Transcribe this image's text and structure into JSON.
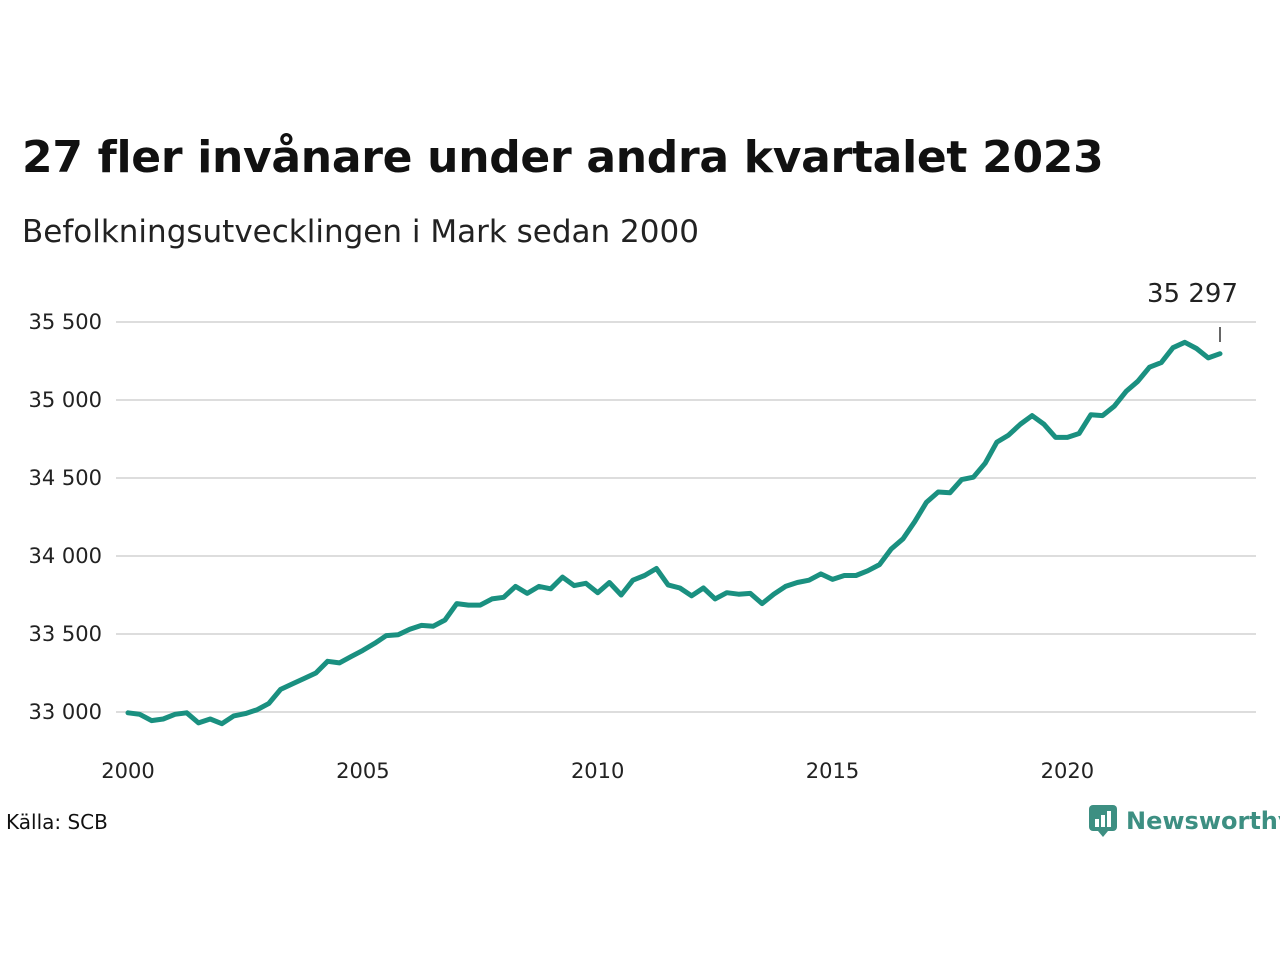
{
  "title": "27 fler invånare under andra kvartalet 2023",
  "subtitle": "Befolkningsutvecklingen i Mark sedan 2000",
  "source": "Källa: SCB",
  "brand": {
    "name": "Newsworthy",
    "color": "#3d8f82",
    "icon": "newsworthy-logo-icon"
  },
  "colors": {
    "line": "#1a9080",
    "grid": "#dddddd"
  },
  "chart_data": {
    "type": "line",
    "title": "27 fler invånare under andra kvartalet 2023",
    "subtitle": "Befolkningsutvecklingen i Mark sedan 2000",
    "xlabel": "",
    "ylabel": "",
    "xlim": [
      2000,
      2024.5
    ],
    "ylim": [
      32850,
      35620
    ],
    "xticks": [
      2000,
      2005,
      2010,
      2015,
      2020
    ],
    "xtick_labels": [
      "2000",
      "2005",
      "2010",
      "2015",
      "2020"
    ],
    "yticks": [
      33000,
      33500,
      34000,
      34500,
      35000,
      35500
    ],
    "ytick_labels": [
      "33 000",
      "33 500",
      "34 000",
      "34 500",
      "35 000",
      "35 500"
    ],
    "grid": "horizontal",
    "legend": "none",
    "end_label": "35 297",
    "series": [
      {
        "x": [
          2000,
          2000.25,
          2000.5,
          2000.75,
          2001,
          2001.25,
          2001.5,
          2001.75,
          2002,
          2002.25,
          2002.5,
          2002.75,
          2003,
          2003.25,
          2003.5,
          2003.75,
          2004,
          2004.25,
          2004.5,
          2004.75,
          2005,
          2005.25,
          2005.5,
          2005.75,
          2006,
          2006.25,
          2006.5,
          2006.75,
          2007,
          2007.25,
          2007.5,
          2007.75,
          2008,
          2008.25,
          2008.5,
          2008.75,
          2009,
          2009.25,
          2009.5,
          2009.75,
          2010,
          2010.25,
          2010.5,
          2010.75,
          2011,
          2011.25,
          2011.5,
          2011.75,
          2012,
          2012.25,
          2012.5,
          2012.75,
          2013,
          2013.25,
          2013.5,
          2013.75,
          2014,
          2014.25,
          2014.5,
          2014.75,
          2015,
          2015.25,
          2015.5,
          2015.75,
          2016,
          2016.25,
          2016.5,
          2016.75,
          2017,
          2017.25,
          2017.5,
          2017.75,
          2018,
          2018.25,
          2018.5,
          2018.75,
          2019,
          2019.25,
          2019.5,
          2019.75,
          2020,
          2020.25,
          2020.5,
          2020.75,
          2021,
          2021.25,
          2021.5,
          2021.75,
          2022,
          2022.25,
          2022.5,
          2022.75,
          2023,
          2023.25
        ],
        "values": [
          32995,
          32985,
          32945,
          32955,
          32985,
          32995,
          32930,
          32955,
          32925,
          32975,
          32990,
          33015,
          33055,
          33145,
          33180,
          33215,
          33250,
          33325,
          33315,
          33355,
          33395,
          33440,
          33490,
          33495,
          33530,
          33555,
          33550,
          33590,
          33695,
          33685,
          33685,
          33725,
          33735,
          33805,
          33760,
          33805,
          33790,
          33865,
          33810,
          33825,
          33765,
          33830,
          33750,
          33845,
          33875,
          33920,
          33815,
          33795,
          33745,
          33795,
          33725,
          33765,
          33755,
          33760,
          33695,
          33755,
          33805,
          33830,
          33845,
          33885,
          33850,
          33875,
          33875,
          33905,
          33945,
          34045,
          34110,
          34220,
          34345,
          34410,
          34405,
          34490,
          34505,
          34595,
          34730,
          34775,
          34845,
          34900,
          34845,
          34760,
          34760,
          34785,
          34905,
          34900,
          34960,
          35055,
          35120,
          35210,
          35240,
          35335,
          35370,
          35330,
          35270,
          35297
        ]
      }
    ]
  }
}
